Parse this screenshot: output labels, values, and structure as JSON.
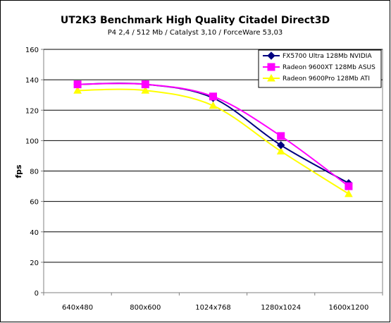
{
  "chart_data": {
    "type": "line",
    "title": "UT2K3 Benchmark High Quality Citadel Direct3D",
    "subtitle": "P4 2,4 / 512 Mb / Catalyst 3,10 / ForceWare 53,03",
    "xlabel": "",
    "ylabel": "fps",
    "categories": [
      "640x480",
      "800x600",
      "1024x768",
      "1280x1024",
      "1600x1200"
    ],
    "ylim": [
      0,
      160
    ],
    "yticks": [
      "0",
      "20",
      "40",
      "60",
      "80",
      "100",
      "120",
      "140",
      "160"
    ],
    "grid": true,
    "legend_position": "top-right",
    "series": [
      {
        "name": "FX5700 Ultra 128Mb NVIDIA",
        "values": [
          137,
          137,
          128,
          97,
          72
        ],
        "color": "#000080",
        "marker": "diamond"
      },
      {
        "name": "Radeon 9600XT 128Mb ASUS",
        "values": [
          137,
          137,
          129,
          103,
          70
        ],
        "color": "#ff00ff",
        "marker": "square"
      },
      {
        "name": "Radeon 9600Pro 128Mb ATI",
        "values": [
          133,
          133,
          123,
          93,
          65
        ],
        "color": "#ffff00",
        "marker": "triangle"
      }
    ]
  }
}
